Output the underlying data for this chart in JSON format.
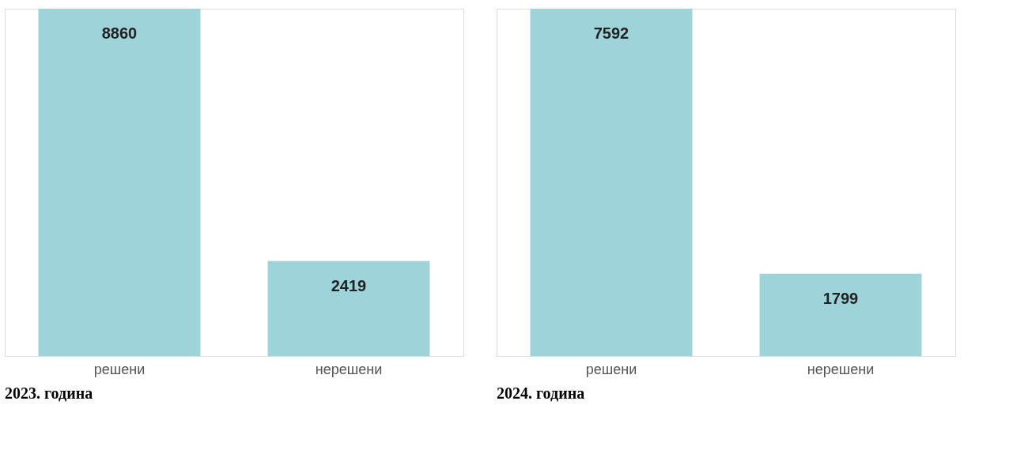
{
  "chart_data": [
    {
      "type": "bar",
      "title": "2023. година",
      "categories": [
        "решени",
        "нерешени"
      ],
      "values": [
        8860,
        2419
      ],
      "color": "#9fd3da",
      "data_labels": true
    },
    {
      "type": "bar",
      "title": "2024. година",
      "categories": [
        "решени",
        "нерешени"
      ],
      "values": [
        7592,
        1799
      ],
      "color": "#9fd3da",
      "data_labels": true
    }
  ]
}
